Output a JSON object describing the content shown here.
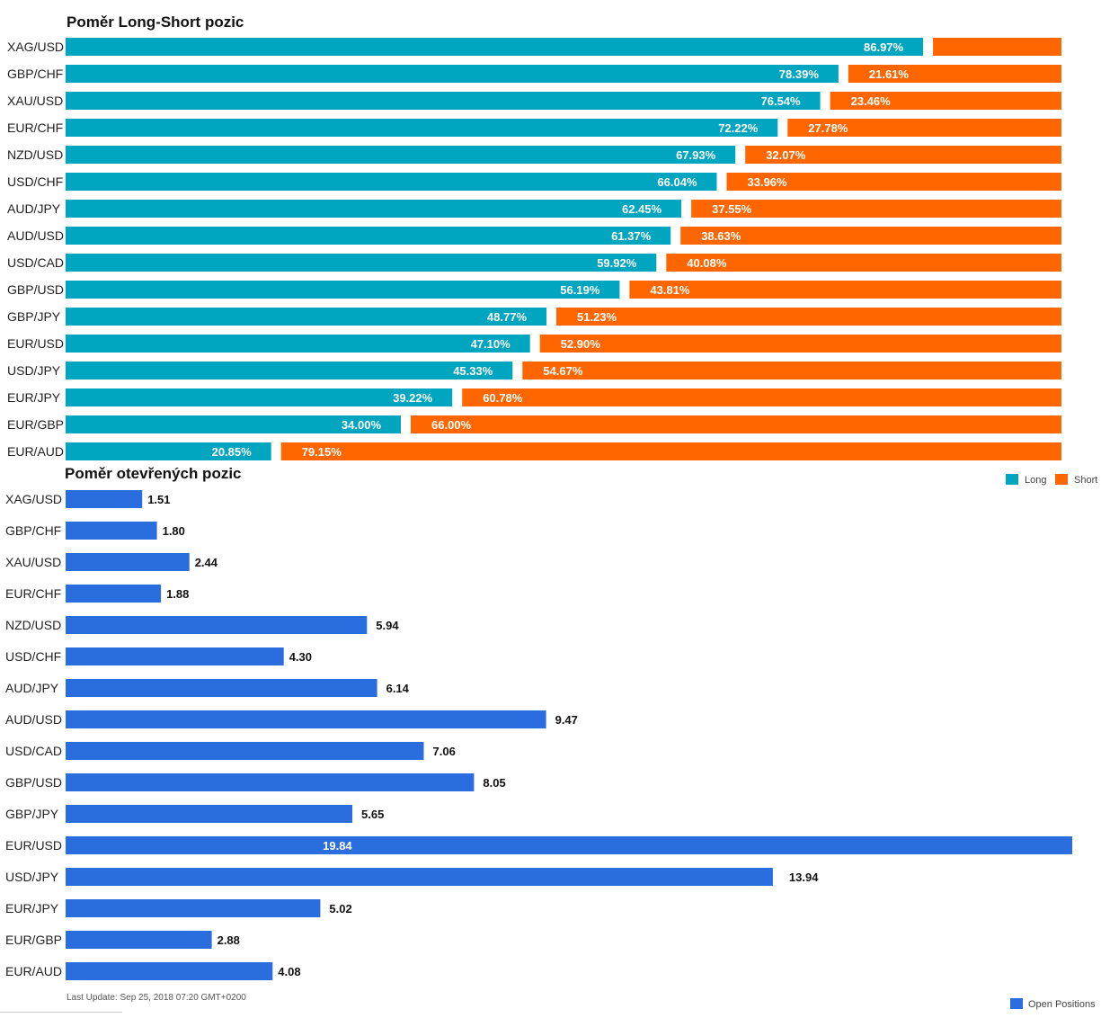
{
  "chart_data": [
    {
      "type": "bar",
      "orientation": "horizontal",
      "stacked": true,
      "title": "Poměr Long-Short pozic",
      "categories": [
        "XAG/USD",
        "GBP/CHF",
        "XAU/USD",
        "EUR/CHF",
        "NZD/USD",
        "USD/CHF",
        "AUD/JPY",
        "AUD/USD",
        "USD/CAD",
        "GBP/USD",
        "GBP/JPY",
        "EUR/USD",
        "USD/JPY",
        "EUR/JPY",
        "EUR/GBP",
        "EUR/AUD"
      ],
      "series": [
        {
          "name": "Long",
          "color": "#00a5c0",
          "values": [
            86.97,
            78.39,
            76.54,
            72.22,
            67.93,
            66.04,
            62.45,
            61.37,
            59.92,
            56.19,
            48.77,
            47.1,
            45.33,
            39.22,
            34.0,
            20.85
          ],
          "labels": [
            "86.97%",
            "78.39%",
            "76.54%",
            "72.22%",
            "67.93%",
            "66.04%",
            "62.45%",
            "61.37%",
            "59.92%",
            "56.19%",
            "48.77%",
            "47.10%",
            "45.33%",
            "39.22%",
            "34.00%",
            "20.85%"
          ]
        },
        {
          "name": "Short",
          "color": "#ff6600",
          "values": [
            13.03,
            21.61,
            23.46,
            27.78,
            32.07,
            33.96,
            37.55,
            38.63,
            40.08,
            43.81,
            51.23,
            52.9,
            54.67,
            60.78,
            66.0,
            79.15
          ],
          "labels": [
            "",
            "21.61%",
            "23.46%",
            "27.78%",
            "32.07%",
            "33.96%",
            "37.55%",
            "38.63%",
            "40.08%",
            "43.81%",
            "51.23%",
            "52.90%",
            "54.67%",
            "60.78%",
            "66.00%",
            "79.15%"
          ]
        }
      ],
      "xlim": [
        0,
        100
      ],
      "grid": false,
      "legend": "bottom-right"
    },
    {
      "type": "bar",
      "orientation": "horizontal",
      "title": "Poměr otevřených pozic",
      "categories": [
        "XAG/USD",
        "GBP/CHF",
        "XAU/USD",
        "EUR/CHF",
        "NZD/USD",
        "USD/CHF",
        "AUD/JPY",
        "AUD/USD",
        "USD/CAD",
        "GBP/USD",
        "GBP/JPY",
        "EUR/USD",
        "USD/JPY",
        "EUR/JPY",
        "EUR/GBP",
        "EUR/AUD"
      ],
      "series": [
        {
          "name": "Open Positions",
          "color": "#2a6ddf",
          "values": [
            1.51,
            1.8,
            2.44,
            1.88,
            5.94,
            4.3,
            6.14,
            9.47,
            7.06,
            8.05,
            5.65,
            19.84,
            13.94,
            5.02,
            2.88,
            4.08
          ],
          "labels": [
            "1.51",
            "1.80",
            "2.44",
            "1.88",
            "5.94",
            "4.30",
            "6.14",
            "9.47",
            "7.06",
            "8.05",
            "5.65",
            "19.84",
            "13.94",
            "5.02",
            "2.88",
            "4.08"
          ]
        }
      ],
      "xlim": [
        0,
        19.84
      ],
      "grid": false,
      "legend": "bottom-right"
    }
  ],
  "footer": {
    "last_update": "Last Update: Sep 25, 2018 07:20 GMT+0200"
  }
}
